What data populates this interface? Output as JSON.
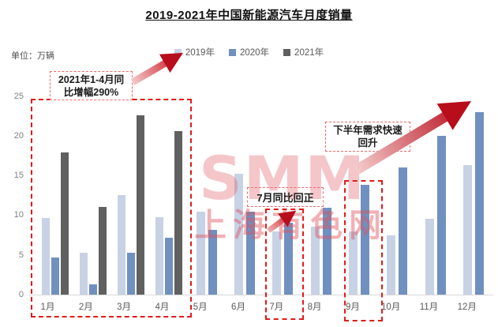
{
  "title": "2019-2021年中国新能源汽车月度销量",
  "unit_label": "单位：万辆",
  "watermark": {
    "line1": "SMM",
    "line2": "上海有色网"
  },
  "legend": [
    {
      "label": "2019年",
      "color": "#c7d2e5"
    },
    {
      "label": "2020年",
      "color": "#7090c0"
    },
    {
      "label": "2021年",
      "color": "#606060"
    }
  ],
  "annotations": {
    "growth": {
      "line1": "2021年1-4月同",
      "line2": "比增幅290%"
    },
    "july": {
      "text": "7月同比回正"
    },
    "h2": {
      "line1": "下半年需求快速",
      "line2": "回升"
    }
  },
  "colors": {
    "series_2019": "#c7d2e5",
    "series_2020": "#7090c0",
    "series_2021": "#606060",
    "dashed_box_red": "#e01b1b",
    "arrow_red": "#c01020",
    "watermark_pink": "#de525c"
  },
  "chart_data": {
    "type": "bar",
    "title": "2019-2021年中国新能源汽车月度销量",
    "ylabel": "万辆",
    "xlabel": "",
    "ylim": [
      0,
      25
    ],
    "yticks": [
      0,
      5,
      10,
      15,
      20,
      25
    ],
    "grid": false,
    "legend_position": "top",
    "categories": [
      "1月",
      "2月",
      "3月",
      "4月",
      "5月",
      "6月",
      "7月",
      "8月",
      "9月",
      "10月",
      "11月",
      "12月"
    ],
    "series": [
      {
        "name": "2019年",
        "color": "#c7d2e5",
        "values": [
          9.6,
          5.3,
          12.5,
          9.7,
          10.4,
          15.2,
          8.0,
          8.5,
          8.0,
          7.5,
          9.5,
          16.3
        ]
      },
      {
        "name": "2020年",
        "color": "#7090c0",
        "values": [
          4.7,
          1.3,
          5.3,
          7.2,
          8.2,
          10.4,
          9.0,
          10.9,
          13.8,
          16.0,
          20.0,
          23.0
        ]
      },
      {
        "name": "2021年",
        "color": "#606060",
        "values": [
          17.9,
          11.0,
          22.6,
          20.6,
          null,
          null,
          null,
          null,
          null,
          null,
          null,
          null
        ]
      }
    ]
  }
}
